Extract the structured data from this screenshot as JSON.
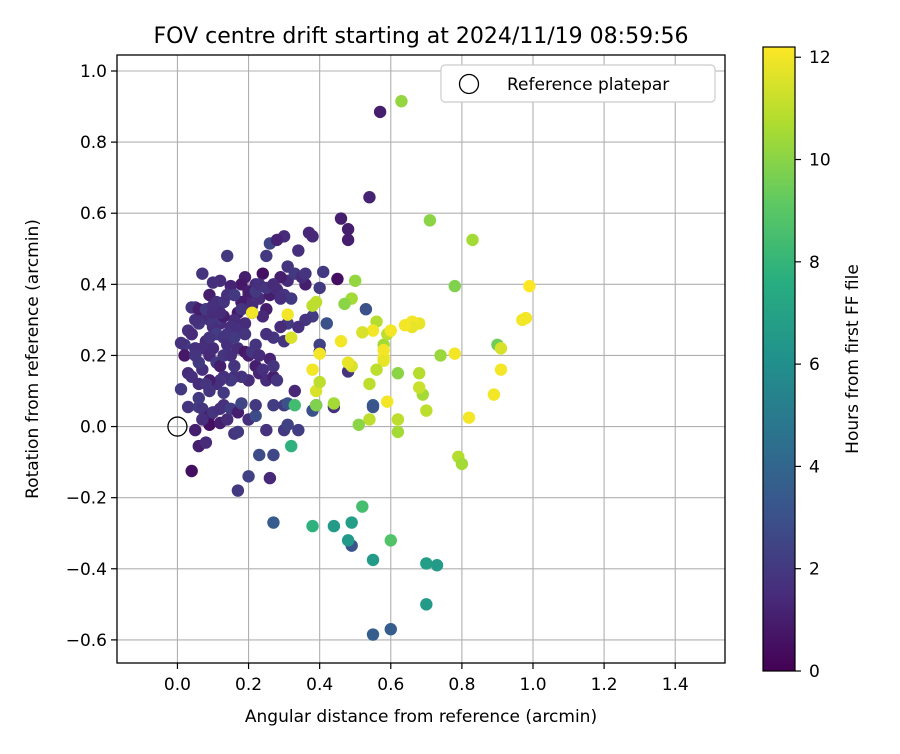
{
  "chart_data": {
    "type": "scatter",
    "title": "FOV centre drift starting at 2024/11/19 08:59:56",
    "xlabel": "Angular distance from reference (arcmin)",
    "ylabel": "Rotation from reference (arcmin)",
    "xlim": [
      -0.17,
      1.54
    ],
    "ylim": [
      -0.665,
      1.045
    ],
    "x_ticks": [
      "0.0",
      "0.2",
      "0.4",
      "0.6",
      "0.8",
      "1.0",
      "1.2",
      "1.4"
    ],
    "y_ticks": [
      "−0.6",
      "−0.4",
      "−0.2",
      "0.0",
      "0.2",
      "0.4",
      "0.6",
      "0.8",
      "1.0"
    ],
    "grid": true,
    "legend": {
      "placement": "top-right",
      "entries": [
        "Reference platepar"
      ]
    },
    "reference_point": {
      "x": 0.0,
      "y": 0.0
    },
    "colorbar": {
      "label": "Hours from first FF file",
      "range": [
        0,
        12.2
      ],
      "ticks": [
        "0",
        "2",
        "4",
        "6",
        "8",
        "10",
        "12"
      ],
      "colormap": "viridis"
    },
    "points": [
      [
        0.57,
        0.885,
        1.0
      ],
      [
        0.63,
        0.915,
        10.2
      ],
      [
        0.54,
        0.645,
        1.2
      ],
      [
        0.46,
        0.585,
        1.0
      ],
      [
        0.48,
        0.555,
        1.0
      ],
      [
        0.48,
        0.525,
        1.0
      ],
      [
        0.38,
        0.535,
        1.4
      ],
      [
        0.37,
        0.545,
        1.4
      ],
      [
        0.3,
        0.535,
        1.5
      ],
      [
        0.26,
        0.515,
        2.5
      ],
      [
        0.25,
        0.48,
        2.0
      ],
      [
        0.14,
        0.48,
        2.0
      ],
      [
        0.28,
        0.525,
        1.2
      ],
      [
        0.34,
        0.495,
        1.6
      ],
      [
        0.41,
        0.435,
        2.0
      ],
      [
        0.45,
        0.415,
        0.5
      ],
      [
        0.4,
        0.39,
        2.0
      ],
      [
        0.36,
        0.4,
        1.0
      ],
      [
        0.31,
        0.41,
        1.5
      ],
      [
        0.29,
        0.42,
        1.0
      ],
      [
        0.24,
        0.43,
        0.5
      ],
      [
        0.22,
        0.4,
        1.5
      ],
      [
        0.19,
        0.42,
        1.0
      ],
      [
        0.18,
        0.4,
        0.8
      ],
      [
        0.15,
        0.395,
        1.2
      ],
      [
        0.12,
        0.41,
        1.5
      ],
      [
        0.1,
        0.405,
        1.6
      ],
      [
        0.07,
        0.43,
        1.8
      ],
      [
        0.09,
        0.37,
        1.0
      ],
      [
        0.05,
        0.335,
        1.5
      ],
      [
        0.04,
        0.335,
        1.8
      ],
      [
        0.03,
        0.27,
        1.6
      ],
      [
        0.04,
        0.26,
        1.9
      ],
      [
        0.02,
        0.23,
        2.0
      ],
      [
        0.01,
        0.235,
        1.7
      ],
      [
        0.02,
        0.2,
        0.8
      ],
      [
        0.05,
        0.22,
        1.6
      ],
      [
        0.03,
        0.15,
        1.5
      ],
      [
        0.04,
        0.14,
        1.6
      ],
      [
        0.01,
        0.105,
        2.0
      ],
      [
        0.06,
        0.12,
        1.5
      ],
      [
        0.06,
        0.08,
        2.0
      ],
      [
        0.03,
        0.055,
        1.8
      ],
      [
        0.06,
        0.055,
        2.2
      ],
      [
        0.07,
        0.05,
        1.8
      ],
      [
        0.05,
        -0.01,
        1.0
      ],
      [
        0.06,
        -0.055,
        1.0
      ],
      [
        0.04,
        -0.125,
        0.5
      ],
      [
        0.08,
        -0.045,
        1.5
      ],
      [
        0.09,
        0.03,
        1.0
      ],
      [
        0.09,
        0.005,
        0.5
      ],
      [
        0.1,
        0.04,
        1.8
      ],
      [
        0.12,
        0.05,
        1.6
      ],
      [
        0.13,
        0.06,
        1.7
      ],
      [
        0.12,
        0.01,
        1.0
      ],
      [
        0.14,
        0.02,
        1.5
      ],
      [
        0.15,
        0.05,
        2.2
      ],
      [
        0.17,
        0.04,
        1.0
      ],
      [
        0.16,
        -0.02,
        1.8
      ],
      [
        0.17,
        -0.015,
        2.0
      ],
      [
        0.18,
        0.065,
        2.5
      ],
      [
        0.2,
        0.02,
        1.6
      ],
      [
        0.22,
        0.03,
        2.8
      ],
      [
        0.22,
        0.06,
        2.0
      ],
      [
        0.23,
        -0.08,
        2.8
      ],
      [
        0.2,
        -0.14,
        2.4
      ],
      [
        0.17,
        -0.18,
        2.0
      ],
      [
        0.26,
        -0.145,
        1.4
      ],
      [
        0.25,
        -0.01,
        1.7
      ],
      [
        0.27,
        -0.08,
        2.6
      ],
      [
        0.27,
        0.06,
        2.2
      ],
      [
        0.3,
        0.06,
        2.0
      ],
      [
        0.3,
        -0.01,
        2.0
      ],
      [
        0.31,
        0.005,
        2.4
      ],
      [
        0.34,
        -0.01,
        2.2
      ],
      [
        0.31,
        0.065,
        3.0
      ],
      [
        0.33,
        0.1,
        1.4
      ],
      [
        0.38,
        0.045,
        3.0
      ],
      [
        0.39,
        0.06,
        2.5
      ],
      [
        0.4,
        0.23,
        2.4
      ],
      [
        0.38,
        0.31,
        2.2
      ],
      [
        0.36,
        0.3,
        1.8
      ],
      [
        0.34,
        0.28,
        1.6
      ],
      [
        0.31,
        0.29,
        2.0
      ],
      [
        0.29,
        0.28,
        1.5
      ],
      [
        0.27,
        0.25,
        1.8
      ],
      [
        0.25,
        0.26,
        1.6
      ],
      [
        0.25,
        0.33,
        1.0
      ],
      [
        0.24,
        0.31,
        1.4
      ],
      [
        0.21,
        0.32,
        2.0
      ],
      [
        0.23,
        0.36,
        1.5
      ],
      [
        0.26,
        0.37,
        1.0
      ],
      [
        0.28,
        0.385,
        1.5
      ],
      [
        0.3,
        0.37,
        1.8
      ],
      [
        0.32,
        0.36,
        2.0
      ],
      [
        0.2,
        0.37,
        1.4
      ],
      [
        0.18,
        0.35,
        1.0
      ],
      [
        0.17,
        0.32,
        0.8
      ],
      [
        0.16,
        0.3,
        1.5
      ],
      [
        0.15,
        0.28,
        1.6
      ],
      [
        0.14,
        0.26,
        1.8
      ],
      [
        0.12,
        0.29,
        1.5
      ],
      [
        0.11,
        0.3,
        2.0
      ],
      [
        0.1,
        0.28,
        1.6
      ],
      [
        0.09,
        0.3,
        1.8
      ],
      [
        0.07,
        0.31,
        1.5
      ],
      [
        0.06,
        0.29,
        1.8
      ],
      [
        0.08,
        0.24,
        1.5
      ],
      [
        0.07,
        0.22,
        1.6
      ],
      [
        0.09,
        0.2,
        1.4
      ],
      [
        0.1,
        0.22,
        1.5
      ],
      [
        0.11,
        0.18,
        2.0
      ],
      [
        0.12,
        0.17,
        1.0
      ],
      [
        0.13,
        0.2,
        1.8
      ],
      [
        0.15,
        0.2,
        1.6
      ],
      [
        0.17,
        0.22,
        1.5
      ],
      [
        0.19,
        0.21,
        0.8
      ],
      [
        0.2,
        0.2,
        1.0
      ],
      [
        0.22,
        0.23,
        1.8
      ],
      [
        0.22,
        0.17,
        1.0
      ],
      [
        0.23,
        0.15,
        1.2
      ],
      [
        0.25,
        0.13,
        1.5
      ],
      [
        0.27,
        0.14,
        1.0
      ],
      [
        0.28,
        0.13,
        1.8
      ],
      [
        0.24,
        0.16,
        1.6
      ],
      [
        0.2,
        0.13,
        1.5
      ],
      [
        0.18,
        0.14,
        1.8
      ],
      [
        0.16,
        0.14,
        1.6
      ],
      [
        0.15,
        0.13,
        2.0
      ],
      [
        0.13,
        0.14,
        1.6
      ],
      [
        0.12,
        0.13,
        1.8
      ],
      [
        0.11,
        0.12,
        1.6
      ],
      [
        0.09,
        0.13,
        1.0
      ],
      [
        0.08,
        0.12,
        1.8
      ],
      [
        0.07,
        0.16,
        1.6
      ],
      [
        0.06,
        0.18,
        2.0
      ],
      [
        0.05,
        0.2,
        1.8
      ],
      [
        0.04,
        0.26,
        1.5
      ],
      [
        0.05,
        0.3,
        1.6
      ],
      [
        0.06,
        0.33,
        1.0
      ],
      [
        0.08,
        0.33,
        2.0
      ],
      [
        0.1,
        0.32,
        1.5
      ],
      [
        0.11,
        0.35,
        1.6
      ],
      [
        0.13,
        0.35,
        1.8
      ],
      [
        0.14,
        0.37,
        1.6
      ],
      [
        0.16,
        0.37,
        2.0
      ],
      [
        0.18,
        0.33,
        1.8
      ],
      [
        0.19,
        0.29,
        1.5
      ],
      [
        0.17,
        0.27,
        1.6
      ],
      [
        0.13,
        0.31,
        1.0
      ],
      [
        0.12,
        0.32,
        1.5
      ],
      [
        0.1,
        0.34,
        1.6
      ],
      [
        0.11,
        0.26,
        2.2
      ],
      [
        0.13,
        0.25,
        1.8
      ],
      [
        0.14,
        0.23,
        1.6
      ],
      [
        0.16,
        0.25,
        2.0
      ],
      [
        0.21,
        0.21,
        1.8
      ],
      [
        0.23,
        0.2,
        1.5
      ],
      [
        0.26,
        0.19,
        1.2
      ],
      [
        0.27,
        0.17,
        1.8
      ],
      [
        0.2,
        0.38,
        1.0
      ],
      [
        0.22,
        0.38,
        2.0
      ],
      [
        0.23,
        0.4,
        1.6
      ],
      [
        0.25,
        0.39,
        1.8
      ],
      [
        0.27,
        0.4,
        1.5
      ],
      [
        0.31,
        0.45,
        1.8
      ],
      [
        0.33,
        0.43,
        2.0
      ],
      [
        0.35,
        0.42,
        1.5
      ],
      [
        0.36,
        0.43,
        1.8
      ],
      [
        0.29,
        0.36,
        1.6
      ],
      [
        0.07,
        0.02,
        1.6
      ],
      [
        0.09,
        0.1,
        1.8
      ],
      [
        0.13,
        0.095,
        2.0
      ],
      [
        0.16,
        0.17,
        1.8
      ],
      [
        0.09,
        0.25,
        1.8
      ],
      [
        0.42,
        0.29,
        3.0
      ],
      [
        0.4,
        0.21,
        2.0
      ],
      [
        0.53,
        0.33,
        3.0
      ],
      [
        0.55,
        0.06,
        3.5
      ],
      [
        0.55,
        0.055,
        3.2
      ],
      [
        0.48,
        0.155,
        1.8
      ],
      [
        0.44,
        0.055,
        1.7
      ],
      [
        0.21,
        0.34,
        1.5
      ],
      [
        0.19,
        0.26,
        1.8
      ],
      [
        0.3,
        0.24,
        1.8
      ],
      [
        0.27,
        -0.27,
        3.5
      ],
      [
        0.6,
        -0.57,
        3.6
      ],
      [
        0.55,
        -0.585,
        3.6
      ],
      [
        0.49,
        -0.335,
        3.2
      ],
      [
        0.48,
        -0.32,
        6.5
      ],
      [
        0.49,
        -0.27,
        6.8
      ],
      [
        0.44,
        -0.28,
        6.6
      ],
      [
        0.38,
        -0.28,
        7.8
      ],
      [
        0.52,
        -0.225,
        8.5
      ],
      [
        0.55,
        -0.375,
        6.6
      ],
      [
        0.6,
        -0.32,
        8.8
      ],
      [
        0.7,
        -0.385,
        6.8
      ],
      [
        0.73,
        -0.39,
        6.6
      ],
      [
        0.7,
        -0.5,
        6.6
      ],
      [
        0.33,
        0.06,
        8.4
      ],
      [
        0.32,
        -0.055,
        7.8
      ],
      [
        0.39,
        0.06,
        9.8
      ],
      [
        0.44,
        0.065,
        10.5
      ],
      [
        0.5,
        0.41,
        10.2
      ],
      [
        0.49,
        0.36,
        10.5
      ],
      [
        0.47,
        0.345,
        10.0
      ],
      [
        0.56,
        0.295,
        10.8
      ],
      [
        0.59,
        0.26,
        11.0
      ],
      [
        0.58,
        0.23,
        10.5
      ],
      [
        0.71,
        0.58,
        10.0
      ],
      [
        0.83,
        0.525,
        10.5
      ],
      [
        0.78,
        0.395,
        9.8
      ],
      [
        0.74,
        0.2,
        10.3
      ],
      [
        0.62,
        0.15,
        10.0
      ],
      [
        0.62,
        0.02,
        11.0
      ],
      [
        0.54,
        0.02,
        11.0
      ],
      [
        0.51,
        0.005,
        10.0
      ],
      [
        0.62,
        -0.015,
        10.5
      ],
      [
        0.69,
        0.09,
        10.5
      ],
      [
        0.68,
        0.15,
        10.8
      ],
      [
        0.7,
        0.045,
        11.0
      ],
      [
        0.79,
        -0.085,
        10.8
      ],
      [
        0.8,
        -0.105,
        10.5
      ],
      [
        0.68,
        0.11,
        11.2
      ],
      [
        0.9,
        0.23,
        9.5
      ],
      [
        0.91,
        0.22,
        11.5
      ],
      [
        0.91,
        0.16,
        12.0
      ],
      [
        0.89,
        0.09,
        12.0
      ],
      [
        0.82,
        0.025,
        12.0
      ],
      [
        0.78,
        0.205,
        12.0
      ],
      [
        0.97,
        0.3,
        12.0
      ],
      [
        0.98,
        0.305,
        12.0
      ],
      [
        0.99,
        0.395,
        12.2
      ],
      [
        0.68,
        0.29,
        11.8
      ],
      [
        0.66,
        0.295,
        12.0
      ],
      [
        0.66,
        0.28,
        11.8
      ],
      [
        0.64,
        0.285,
        12.0
      ],
      [
        0.6,
        0.27,
        12.0
      ],
      [
        0.58,
        0.215,
        12.0
      ],
      [
        0.58,
        0.195,
        12.0
      ],
      [
        0.58,
        0.185,
        11.8
      ],
      [
        0.55,
        0.27,
        12.0
      ],
      [
        0.52,
        0.265,
        11.5
      ],
      [
        0.49,
        0.17,
        11.5
      ],
      [
        0.48,
        0.18,
        11.8
      ],
      [
        0.4,
        0.205,
        12.0
      ],
      [
        0.38,
        0.16,
        12.0
      ],
      [
        0.39,
        0.1,
        11.5
      ],
      [
        0.39,
        0.35,
        11.0
      ],
      [
        0.38,
        0.34,
        11.0
      ],
      [
        0.32,
        0.25,
        11.5
      ],
      [
        0.31,
        0.315,
        12.0
      ],
      [
        0.21,
        0.32,
        12.0
      ],
      [
        0.59,
        0.07,
        12.0
      ],
      [
        0.4,
        0.125,
        11.0
      ],
      [
        0.46,
        0.24,
        12.0
      ],
      [
        0.56,
        0.16,
        11.0
      ],
      [
        0.54,
        0.12,
        11.0
      ]
    ]
  }
}
